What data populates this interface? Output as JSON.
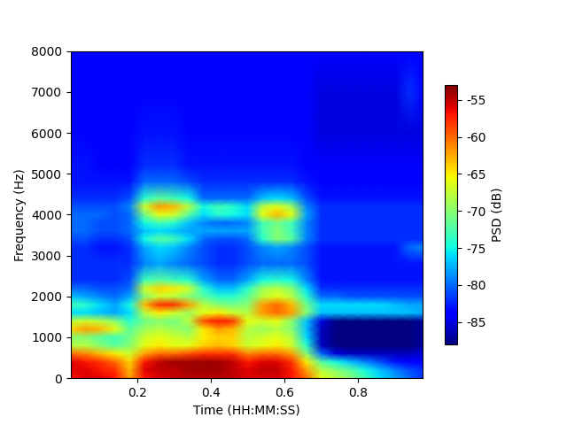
{
  "chart_data": {
    "type": "spectrogram",
    "xlabel": "Time (HH:MM:SS)",
    "ylabel": "Frequency (Hz)",
    "xlim": [
      0.02,
      0.975
    ],
    "xticks": [
      0.2,
      0.4,
      0.6,
      0.8
    ],
    "ylim": [
      0,
      8000
    ],
    "yticks": [
      0,
      1000,
      2000,
      3000,
      4000,
      5000,
      6000,
      7000,
      8000
    ],
    "x": [
      0.02,
      0.06,
      0.1,
      0.14,
      0.18,
      0.22,
      0.26,
      0.3,
      0.34,
      0.38,
      0.42,
      0.46,
      0.5,
      0.54,
      0.58,
      0.62,
      0.66,
      0.7,
      0.74,
      0.78,
      0.82,
      0.86,
      0.9,
      0.94,
      0.98
    ],
    "y": [
      0,
      200,
      400,
      600,
      800,
      1000,
      1200,
      1400,
      1600,
      1800,
      2000,
      2200,
      2400,
      2800,
      3200,
      3400,
      3600,
      3800,
      4000,
      4200,
      4400,
      4800,
      5200,
      6000,
      7000,
      8000
    ],
    "cells": [
      [
        -57,
        -56,
        -56,
        -57,
        -62,
        -57,
        -56,
        -55,
        -55,
        -55,
        -55,
        -55,
        -56,
        -56,
        -56,
        -57,
        -60,
        -66,
        -68,
        -70,
        -73,
        -76,
        -78,
        -80,
        -82
      ],
      [
        -56,
        -56,
        -57,
        -58,
        -63,
        -56,
        -55,
        -55,
        -54,
        -54,
        -54,
        -55,
        -56,
        -55,
        -55,
        -57,
        -62,
        -68,
        -70,
        -72,
        -75,
        -77,
        -79,
        -81,
        -82
      ],
      [
        -56,
        -57,
        -58,
        -60,
        -64,
        -57,
        -55,
        -54,
        -54,
        -54,
        -54,
        -55,
        -57,
        -56,
        -56,
        -58,
        -65,
        -72,
        -75,
        -77,
        -79,
        -81,
        -83,
        -84,
        -84
      ],
      [
        -60,
        -61,
        -63,
        -65,
        -67,
        -62,
        -60,
        -60,
        -59,
        -58,
        -58,
        -58,
        -61,
        -60,
        -60,
        -62,
        -70,
        -80,
        -85,
        -86,
        -86,
        -86,
        -86,
        -86,
        -85
      ],
      [
        -68,
        -68,
        -70,
        -72,
        -70,
        -66,
        -65,
        -66,
        -66,
        -64,
        -63,
        -64,
        -67,
        -66,
        -65,
        -67,
        -74,
        -86,
        -88,
        -88,
        -88,
        -88,
        -88,
        -88,
        -87
      ],
      [
        -70,
        -70,
        -72,
        -73,
        -71,
        -67,
        -66,
        -67,
        -68,
        -65,
        -64,
        -64,
        -68,
        -67,
        -66,
        -68,
        -76,
        -86,
        -88,
        -88,
        -88,
        -88,
        -88,
        -88,
        -87
      ],
      [
        -64,
        -62,
        -63,
        -66,
        -72,
        -69,
        -68,
        -69,
        -70,
        -65,
        -62,
        -63,
        -68,
        -69,
        -68,
        -70,
        -77,
        -86,
        -88,
        -88,
        -88,
        -88,
        -88,
        -88,
        -87
      ],
      [
        -68,
        -67,
        -68,
        -70,
        -74,
        -71,
        -70,
        -71,
        -68,
        -59,
        -57,
        -58,
        -66,
        -67,
        -66,
        -70,
        -77,
        -85,
        -88,
        -88,
        -88,
        -88,
        -88,
        -88,
        -87
      ],
      [
        -76,
        -76,
        -77,
        -78,
        -76,
        -68,
        -65,
        -67,
        -69,
        -66,
        -65,
        -67,
        -68,
        -62,
        -60,
        -62,
        -70,
        -77,
        -77,
        -77,
        -77,
        -77,
        -77,
        -77,
        -78
      ],
      [
        -73,
        -74,
        -76,
        -78,
        -75,
        -63,
        -58,
        -58,
        -62,
        -68,
        -70,
        -71,
        -70,
        -62,
        -60,
        -63,
        -71,
        -76,
        -76,
        -76,
        -76,
        -76,
        -77,
        -78,
        -78
      ],
      [
        -77,
        -78,
        -79,
        -80,
        -78,
        -70,
        -67,
        -68,
        -70,
        -72,
        -74,
        -74,
        -72,
        -68,
        -66,
        -68,
        -74,
        -80,
        -80,
        -81,
        -81,
        -81,
        -81,
        -81,
        -81
      ],
      [
        -80,
        -80,
        -81,
        -81,
        -80,
        -67,
        -64,
        -65,
        -67,
        -74,
        -77,
        -77,
        -74,
        -69,
        -68,
        -70,
        -76,
        -82,
        -82,
        -82,
        -82,
        -82,
        -82,
        -82,
        -82
      ],
      [
        -82,
        -82,
        -82,
        -82,
        -81,
        -73,
        -72,
        -73,
        -74,
        -78,
        -80,
        -80,
        -78,
        -75,
        -74,
        -75,
        -79,
        -83,
        -83,
        -83,
        -83,
        -83,
        -83,
        -83,
        -83
      ],
      [
        -82,
        -82,
        -82,
        -82,
        -82,
        -79,
        -78,
        -79,
        -80,
        -81,
        -82,
        -82,
        -81,
        -80,
        -80,
        -80,
        -81,
        -83,
        -83,
        -83,
        -83,
        -83,
        -83,
        -83,
        -83
      ],
      [
        -82,
        -82,
        -83,
        -83,
        -82,
        -78,
        -76,
        -77,
        -79,
        -81,
        -82,
        -82,
        -81,
        -79,
        -78,
        -79,
        -81,
        -83,
        -83,
        -83,
        -83,
        -83,
        -83,
        -80,
        -79
      ],
      [
        -81,
        -81,
        -82,
        -82,
        -81,
        -75,
        -72,
        -73,
        -76,
        -80,
        -81,
        -81,
        -80,
        -74,
        -70,
        -72,
        -79,
        -82,
        -82,
        -82,
        -82,
        -82,
        -82,
        -82,
        -82
      ],
      [
        -80,
        -80,
        -81,
        -81,
        -80,
        -77,
        -76,
        -77,
        -78,
        -78,
        -78,
        -78,
        -78,
        -73,
        -70,
        -73,
        -79,
        -82,
        -82,
        -82,
        -82,
        -82,
        -82,
        -82,
        -82
      ],
      [
        -80,
        -80,
        -81,
        -81,
        -80,
        -75,
        -73,
        -74,
        -77,
        -79,
        -80,
        -80,
        -79,
        -73,
        -71,
        -73,
        -79,
        -82,
        -82,
        -82,
        -82,
        -82,
        -82,
        -82,
        -82
      ],
      [
        -80,
        -80,
        -80,
        -81,
        -80,
        -71,
        -66,
        -67,
        -72,
        -76,
        -74,
        -75,
        -76,
        -66,
        -63,
        -66,
        -78,
        -82,
        -82,
        -82,
        -82,
        -82,
        -82,
        -82,
        -82
      ],
      [
        -81,
        -81,
        -81,
        -81,
        -79,
        -67,
        -62,
        -63,
        -68,
        -75,
        -73,
        -74,
        -76,
        -68,
        -66,
        -69,
        -79,
        -82,
        -82,
        -82,
        -82,
        -82,
        -82,
        -82,
        -82
      ],
      [
        -82,
        -82,
        -82,
        -82,
        -81,
        -74,
        -72,
        -73,
        -75,
        -80,
        -80,
        -80,
        -80,
        -77,
        -76,
        -77,
        -81,
        -83,
        -83,
        -83,
        -83,
        -83,
        -83,
        -83,
        -83
      ],
      [
        -83,
        -83,
        -83,
        -83,
        -83,
        -80,
        -80,
        -80,
        -81,
        -82,
        -82,
        -82,
        -82,
        -82,
        -82,
        -82,
        -83,
        -84,
        -84,
        -84,
        -84,
        -84,
        -84,
        -84,
        -84
      ],
      [
        -83,
        -83,
        -84,
        -84,
        -84,
        -82,
        -82,
        -82,
        -83,
        -83,
        -83,
        -83,
        -83,
        -83,
        -83,
        -83,
        -84,
        -84,
        -84,
        -84,
        -84,
        -84,
        -84,
        -84,
        -84
      ],
      [
        -84,
        -84,
        -84,
        -84,
        -84,
        -83,
        -83,
        -83,
        -84,
        -84,
        -84,
        -84,
        -84,
        -84,
        -84,
        -84,
        -84,
        -85,
        -85,
        -85,
        -85,
        -85,
        -85,
        -85,
        -85
      ],
      [
        -84,
        -84,
        -84,
        -84,
        -84,
        -84,
        -84,
        -84,
        -84,
        -84,
        -84,
        -84,
        -84,
        -84,
        -84,
        -84,
        -84,
        -85,
        -85,
        -85,
        -85,
        -85,
        -85,
        -82,
        -84
      ],
      [
        -84,
        -84,
        -84,
        -84,
        -84,
        -84,
        -84,
        -84,
        -84,
        -84,
        -84,
        -84,
        -84,
        -84,
        -84,
        -84,
        -84,
        -84,
        -84,
        -84,
        -84,
        -84,
        -84,
        -84,
        -84
      ]
    ],
    "colorbar": {
      "label": "PSD (dB)",
      "range": [
        -88,
        -53
      ],
      "ticks": [
        -85,
        -80,
        -75,
        -70,
        -65,
        -60,
        -55
      ]
    }
  }
}
